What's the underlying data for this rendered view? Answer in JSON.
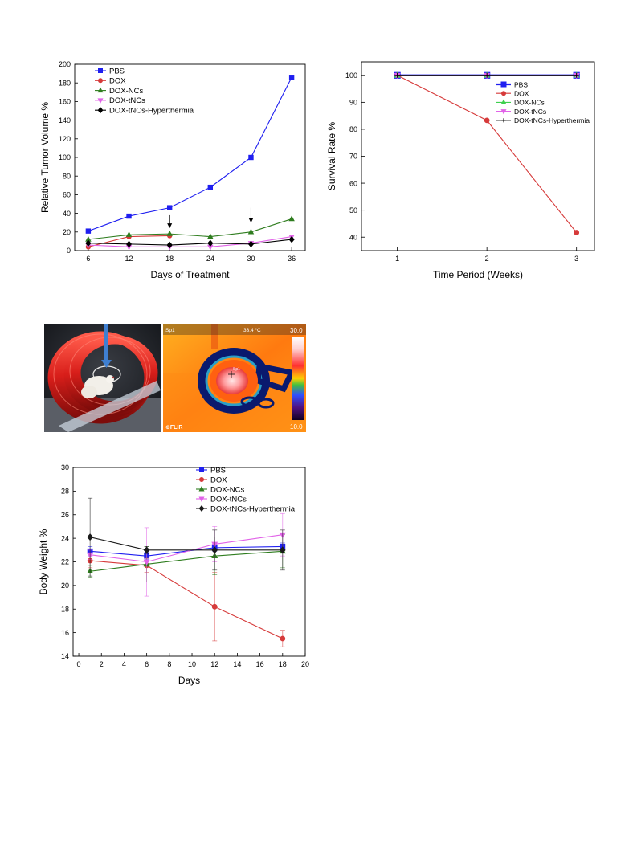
{
  "chart_data": [
    {
      "type": "line",
      "xlabel": "Days of Treatment",
      "ylabel": "Relative Tumor Volume %",
      "xticks": [
        "6",
        "12",
        "18",
        "24",
        "30",
        "36"
      ],
      "yticks": [
        "0",
        "20",
        "40",
        "60",
        "80",
        "100",
        "120",
        "140",
        "160",
        "180",
        "200"
      ],
      "xlim": [
        4,
        38
      ],
      "ylim": [
        0,
        200
      ],
      "x": [
        6,
        12,
        18,
        24,
        30,
        36
      ],
      "legend_position": "top-left",
      "annotations": [
        {
          "type": "arrow-down",
          "x": 18,
          "from_y": 38,
          "to_y": 24
        },
        {
          "type": "arrow-down",
          "x": 30,
          "from_y": 46,
          "to_y": 30
        }
      ],
      "series": [
        {
          "name": "PBS",
          "color": "#1f1ff0",
          "marker": "square",
          "values": [
            21,
            37,
            46,
            68,
            100,
            186
          ]
        },
        {
          "name": "DOX",
          "color": "#d63a3a",
          "marker": "circle",
          "values": [
            4,
            15,
            16,
            null,
            null,
            null
          ]
        },
        {
          "name": "DOX-NCs",
          "color": "#2f7d1f",
          "marker": "triangle-up",
          "values": [
            12,
            17,
            18,
            15,
            20,
            34
          ]
        },
        {
          "name": "DOX-tNCs",
          "color": "#e163e8",
          "marker": "triangle-down",
          "values": [
            6,
            4,
            4,
            4,
            8,
            15
          ]
        },
        {
          "name": "DOX-tNCs-Hyperthermia",
          "color": "#000000",
          "marker": "diamond",
          "values": [
            8,
            7,
            6,
            8,
            7,
            12
          ]
        }
      ]
    },
    {
      "type": "line",
      "xlabel": "Time Period (Weeks)",
      "ylabel": "Survival Rate %",
      "xticks": [
        "1",
        "2",
        "3"
      ],
      "yticks": [
        "40",
        "50",
        "60",
        "70",
        "80",
        "90",
        "100"
      ],
      "xlim": [
        0.6,
        3.2
      ],
      "ylim": [
        35,
        105
      ],
      "x": [
        1,
        2,
        3
      ],
      "legend_position": "top-right",
      "series": [
        {
          "name": "PBS",
          "color": "#1f1ff0",
          "marker": "square",
          "values": [
            100,
            100,
            100
          ]
        },
        {
          "name": "DOX",
          "color": "#d63a3a",
          "marker": "circle",
          "values": [
            100,
            83.3,
            41.7
          ]
        },
        {
          "name": "DOX-NCs",
          "color": "#3fd04f",
          "marker": "triangle-up",
          "values": [
            100,
            100,
            100
          ]
        },
        {
          "name": "DOX-tNCs",
          "color": "#e163e8",
          "marker": "triangle-down",
          "values": [
            100,
            100,
            100
          ]
        },
        {
          "name": "DOX-tNCs-Hyperthermia",
          "color": "#000000",
          "marker": "plus",
          "values": [
            100,
            100,
            100
          ]
        }
      ]
    },
    {
      "type": "line",
      "xlabel": "Days",
      "ylabel": "Body Weight %",
      "xticks": [
        "0",
        "2",
        "4",
        "6",
        "8",
        "10",
        "12",
        "14",
        "16",
        "18",
        "20"
      ],
      "yticks": [
        "14",
        "16",
        "18",
        "20",
        "22",
        "24",
        "26",
        "28",
        "30"
      ],
      "xlim": [
        -0.5,
        20
      ],
      "ylim": [
        14,
        30
      ],
      "x": [
        1,
        6,
        12,
        18
      ],
      "legend_position": "top-right",
      "error_bars": true,
      "series": [
        {
          "name": "PBS",
          "color": "#1f1ff0",
          "marker": "square",
          "values": [
            22.9,
            22.5,
            23.2,
            23.3
          ],
          "errors": [
            0.4,
            0.3,
            0.3,
            0.3
          ]
        },
        {
          "name": "DOX",
          "color": "#d63a3a",
          "marker": "circle",
          "values": [
            22.1,
            21.7,
            18.2,
            15.5
          ],
          "errors": [
            0.6,
            0.6,
            2.9,
            0.7
          ]
        },
        {
          "name": "DOX-NCs",
          "color": "#2f7d1f",
          "marker": "triangle-up",
          "values": [
            21.2,
            21.8,
            22.5,
            22.9
          ],
          "errors": [
            0.5,
            1.5,
            1.6,
            1.4
          ]
        },
        {
          "name": "DOX-tNCs",
          "color": "#e163e8",
          "marker": "triangle-down",
          "values": [
            22.6,
            22.0,
            23.5,
            24.3
          ],
          "errors": [
            0.4,
            2.9,
            1.5,
            1.8
          ]
        },
        {
          "name": "DOX-tNCs-Hyperthermia",
          "color": "#1a1a1a",
          "marker": "diamond",
          "values": [
            24.1,
            23.0,
            23.0,
            23.0
          ],
          "errors": [
            3.3,
            0.3,
            1.7,
            1.7
          ]
        }
      ]
    }
  ],
  "figure": {
    "thermal_image": {
      "spot_label": "Sp1",
      "spot_temp": "33.4 °C",
      "scale_max": "30.0",
      "scale_min": "10.0",
      "brand": "FLIR",
      "spot_tag": "Sp1"
    }
  }
}
